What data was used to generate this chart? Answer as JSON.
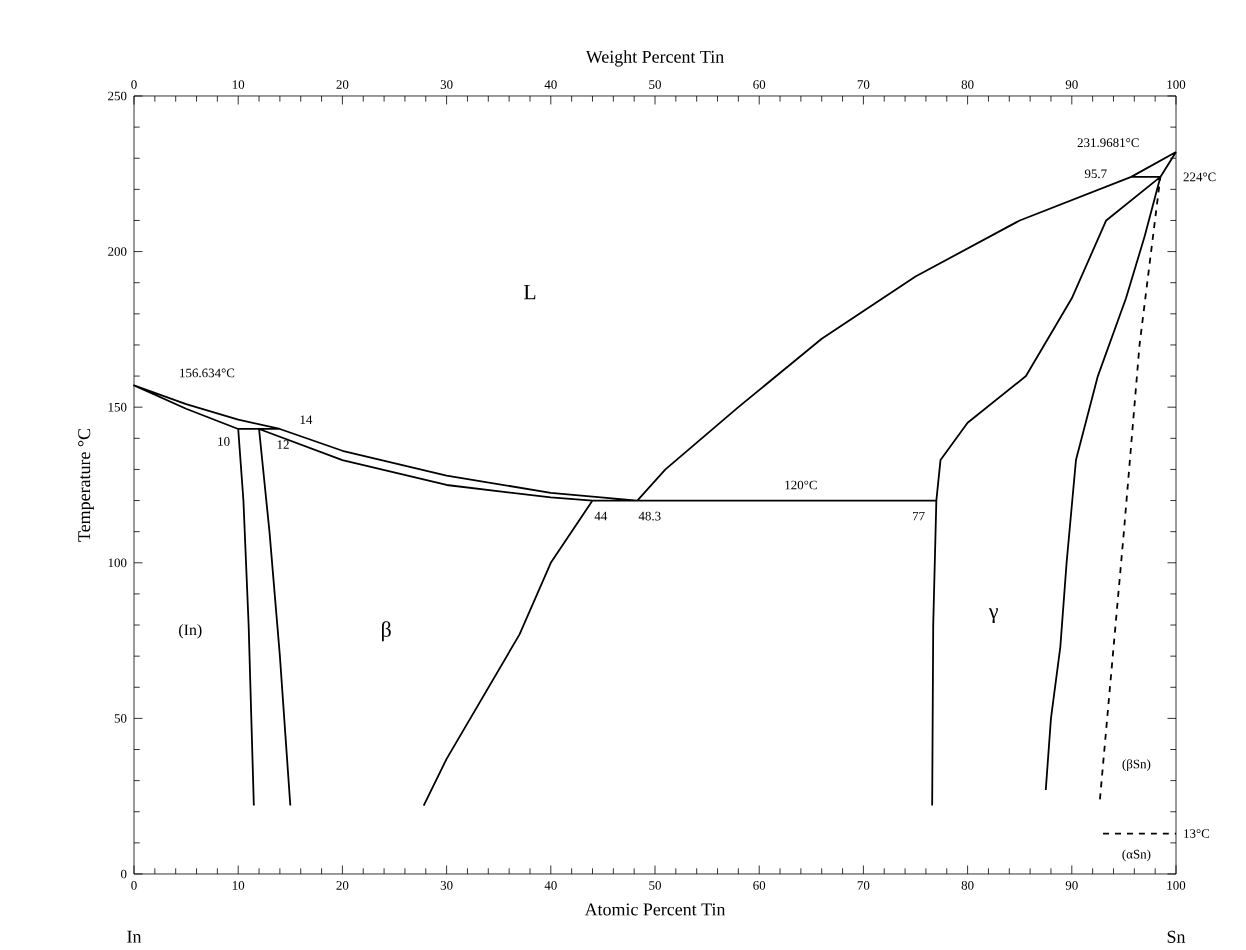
{
  "chart_data": {
    "type": "line",
    "xlabel": "Atomic Percent Tin",
    "x2label": "Weight Percent Tin",
    "ylabel": "Temperature °C",
    "xlim": [
      0,
      100
    ],
    "ylim": [
      0,
      250
    ],
    "x2lim": [
      0,
      100
    ],
    "xticks": [
      0,
      10,
      20,
      30,
      40,
      50,
      60,
      70,
      80,
      90,
      100
    ],
    "x2ticks": [
      0,
      10,
      20,
      30,
      40,
      50,
      60,
      70,
      80,
      90,
      100
    ],
    "yticks": [
      0,
      50,
      100,
      150,
      200,
      250
    ],
    "grid": false,
    "series": [
      {
        "color": "#000000",
        "line_style": "solid",
        "x": [
          48.3,
          40,
          30,
          20,
          14,
          10,
          5,
          0,
          5,
          10,
          14,
          null,
          10,
          10.5,
          11,
          11.5,
          null,
          12,
          13,
          14,
          15,
          null,
          12,
          20,
          30,
          40,
          44,
          77,
          76.7,
          76.6,
          null,
          44,
          40,
          37,
          30,
          27.8,
          null,
          48.3,
          51,
          58,
          66,
          75,
          85,
          95.7,
          98.5,
          100,
          null,
          100,
          95.7,
          null,
          77,
          77.4,
          80,
          85.6,
          90,
          93.3,
          98.5,
          97,
          95.2,
          92.5,
          90.4,
          89.5,
          88.9,
          88,
          87.5
        ],
        "values": [
          120,
          122.5,
          128,
          136,
          143,
          146,
          151,
          157,
          149.5,
          143,
          143,
          null,
          143,
          120,
          80,
          22,
          null,
          143,
          110,
          70,
          22,
          null,
          143,
          133,
          125,
          121,
          120,
          120,
          80,
          22,
          null,
          120,
          100,
          77,
          37,
          22,
          null,
          120,
          130,
          150,
          172,
          192,
          210,
          224,
          224,
          232,
          null,
          232,
          224,
          null,
          120,
          133,
          145,
          160,
          185,
          210,
          224,
          205,
          185,
          160,
          133,
          100,
          73,
          50,
          27
        ]
      },
      {
        "color": "#000000",
        "line_style": "dashed",
        "x": [
          92.7,
          95,
          96.5,
          98.5,
          null,
          93,
          100
        ],
        "values": [
          24,
          110,
          170,
          224,
          null,
          13,
          13
        ]
      }
    ],
    "annotations": [
      "L",
      "156.634°C",
      "14",
      "10",
      "12",
      "44",
      "48.3",
      "120°C",
      "77",
      "(In)",
      "β",
      "γ",
      "231.9681°C",
      "95.7",
      "224°C",
      "(βSn)",
      "13°C",
      "(αSn)",
      "In",
      "Sn"
    ]
  }
}
